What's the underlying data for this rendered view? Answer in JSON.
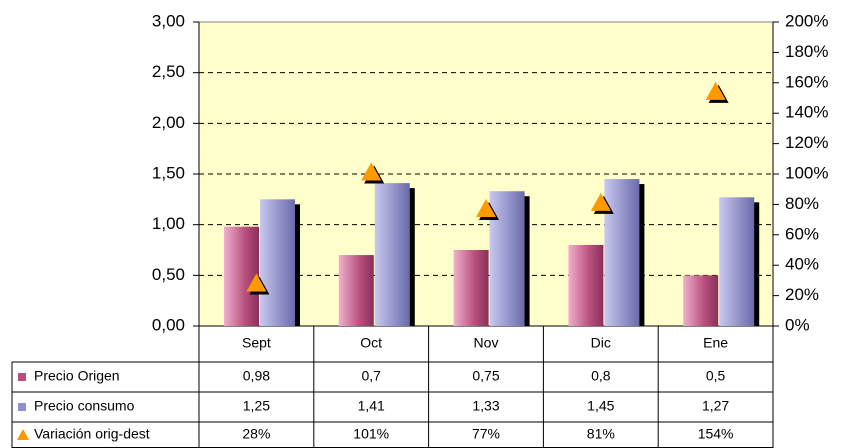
{
  "chart_data": {
    "type": "bar",
    "categories": [
      "Sept",
      "Oct",
      "Nov",
      "Dic",
      "Ene"
    ],
    "series": [
      {
        "name": "Precio Origen",
        "color": "#b8507e",
        "values": [
          0.98,
          0.7,
          0.75,
          0.8,
          0.5
        ],
        "value_labels": [
          "0,98",
          "0,7",
          "0,75",
          "0,8",
          "0,5"
        ]
      },
      {
        "name": "Precio consumo",
        "color": "#8f8fc8",
        "values": [
          1.25,
          1.41,
          1.33,
          1.45,
          1.27
        ],
        "value_labels": [
          "1,25",
          "1,41",
          "1,33",
          "1,45",
          "1,27"
        ]
      },
      {
        "name": "Variación orig-dest",
        "color": "#ff9900",
        "type": "scatter",
        "axis": "y2",
        "values": [
          28,
          101,
          77,
          81,
          154
        ],
        "value_labels": [
          "28%",
          "101%",
          "77%",
          "81%",
          "154%"
        ]
      }
    ],
    "ylim": [
      0,
      3
    ],
    "yticks": [
      {
        "value": 0,
        "label": "0,00"
      },
      {
        "value": 0.5,
        "label": "0,50"
      },
      {
        "value": 1,
        "label": "1,00"
      },
      {
        "value": 1.5,
        "label": "1,50"
      },
      {
        "value": 2,
        "label": "2,00"
      },
      {
        "value": 2.5,
        "label": "2,50"
      },
      {
        "value": 3,
        "label": "3,00"
      }
    ],
    "y2lim": [
      0,
      200
    ],
    "y2ticks": [
      {
        "value": 0,
        "label": "0%"
      },
      {
        "value": 20,
        "label": "20%"
      },
      {
        "value": 40,
        "label": "40%"
      },
      {
        "value": 60,
        "label": "60%"
      },
      {
        "value": 80,
        "label": "80%"
      },
      {
        "value": 100,
        "label": "100%"
      },
      {
        "value": 120,
        "label": "120%"
      },
      {
        "value": 140,
        "label": "140%"
      },
      {
        "value": 160,
        "label": "160%"
      },
      {
        "value": 180,
        "label": "180%"
      },
      {
        "value": 200,
        "label": "200%"
      }
    ],
    "grid": true,
    "legend": "data-table"
  }
}
